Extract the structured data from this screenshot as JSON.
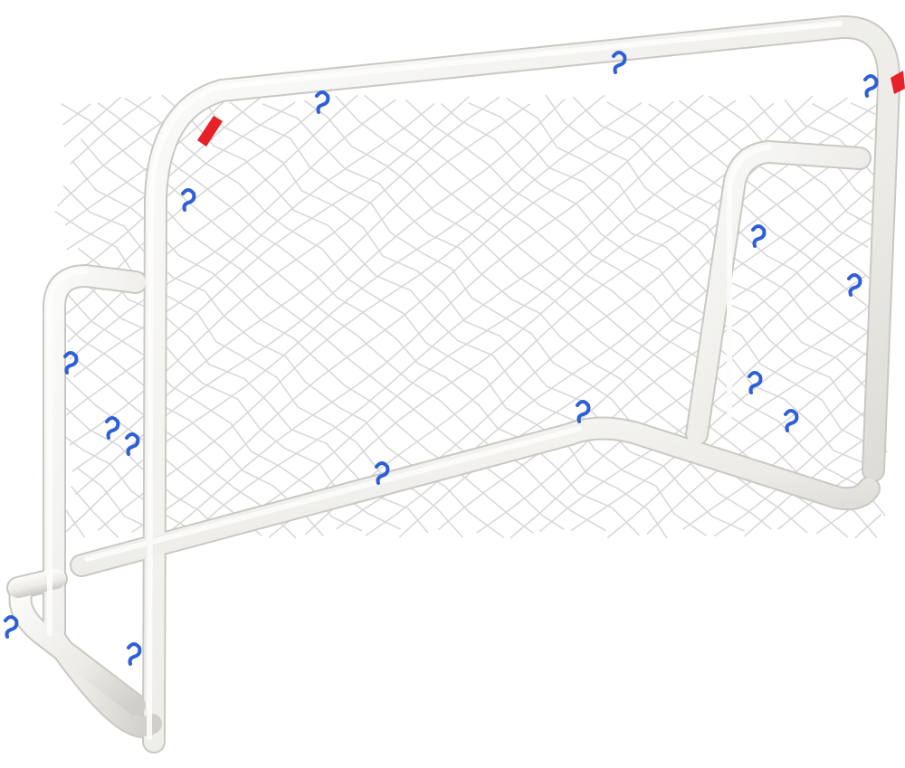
{
  "scene": {
    "subject": "goal-frame",
    "colors": {
      "background": "#ffffff",
      "frame": "#ecebe7",
      "frame_shadow": "#c9c8c3",
      "frame_highlight": "#fbfbfa",
      "net": "#d9d9d9",
      "clip": "#2f5fd6",
      "tape": "#e8202a"
    },
    "icons": [
      "clip-icon",
      "tape-icon"
    ]
  }
}
